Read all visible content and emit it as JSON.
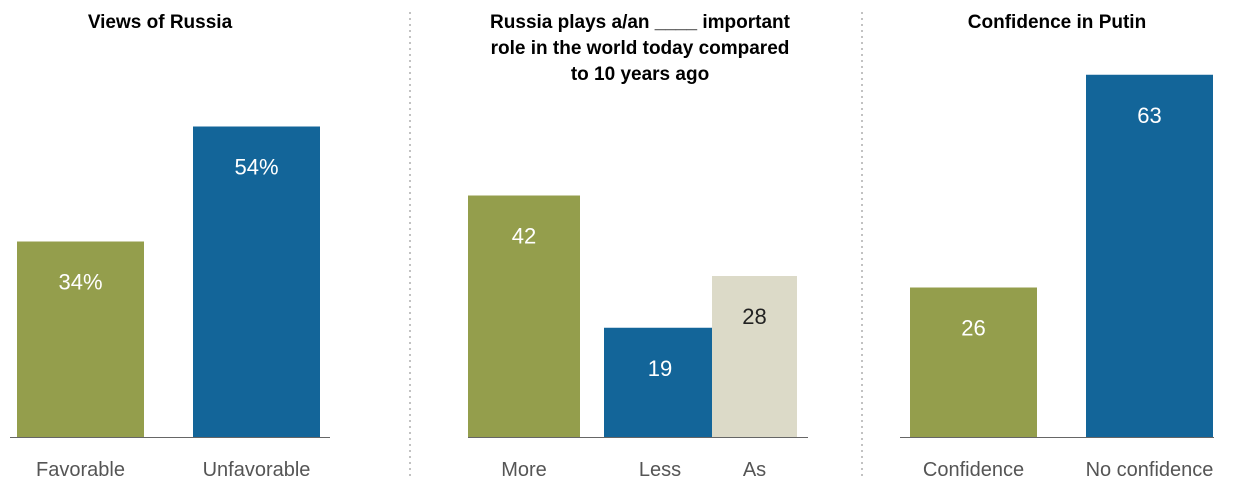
{
  "chart_data": [
    {
      "type": "bar",
      "title_lines": [
        "Views of Russia"
      ],
      "categories": [
        "Favorable",
        "Unfavorable"
      ],
      "values": [
        34,
        54
      ],
      "labels": [
        "34%",
        "54%"
      ],
      "colors": [
        "#949e4c",
        "#136599"
      ],
      "label_colors": [
        "#ffffff",
        "#ffffff"
      ],
      "ylim": [
        0,
        66
      ]
    },
    {
      "type": "bar",
      "title_lines": [
        "Russia plays a/an ____ important",
        "role in the world today compared",
        "to 10 years ago"
      ],
      "categories": [
        "More",
        "Less",
        "As"
      ],
      "values": [
        42,
        19,
        28
      ],
      "labels": [
        "42",
        "19",
        "28"
      ],
      "colors": [
        "#949e4c",
        "#136599",
        "#dcdac8"
      ],
      "label_colors": [
        "#ffffff",
        "#ffffff",
        "#222222"
      ],
      "ylim": [
        0,
        66
      ]
    },
    {
      "type": "bar",
      "title_lines": [
        "Confidence in Putin"
      ],
      "categories": [
        "Confidence",
        "No confidence"
      ],
      "values": [
        26,
        63
      ],
      "labels": [
        "26",
        "63"
      ],
      "colors": [
        "#949e4c",
        "#136599"
      ],
      "label_colors": [
        "#ffffff",
        "#ffffff"
      ],
      "ylim": [
        0,
        66
      ]
    }
  ]
}
